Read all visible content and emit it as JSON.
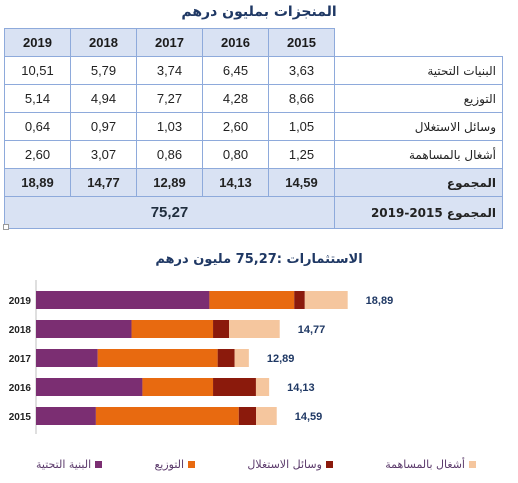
{
  "table": {
    "title": "المنجزات بمليون درهم",
    "years": [
      "2019",
      "2018",
      "2017",
      "2016",
      "2015"
    ],
    "rows": [
      {
        "label": "البنيات التحتية",
        "values": [
          "10,51",
          "5,79",
          "3,74",
          "6,45",
          "3,63"
        ]
      },
      {
        "label": "التوزيع",
        "values": [
          "5,14",
          "4,94",
          "7,27",
          "4,28",
          "8,66"
        ]
      },
      {
        "label": "وسائل الاستغلال",
        "values": [
          "0,64",
          "0,97",
          "1,03",
          "2,60",
          "1,05"
        ]
      },
      {
        "label": "أشغال بالمساهمة",
        "values": [
          "2,60",
          "3,07",
          "0,86",
          "0,80",
          "1,25"
        ]
      }
    ],
    "total": {
      "label": "المجموع",
      "values": [
        "18,89",
        "14,77",
        "12,89",
        "14,13",
        "14,59"
      ]
    },
    "grand_total": {
      "label": "المجموع 2015-2019",
      "value": "75,27"
    }
  },
  "chart_data": {
    "type": "bar",
    "orientation": "horizontal",
    "stacked": true,
    "title": "الاستثمارات :75,27 مليون درهم",
    "categories": [
      "2019",
      "2018",
      "2017",
      "2016",
      "2015"
    ],
    "series": [
      {
        "name": "البنية التحتية",
        "color": "#7b2e72",
        "values": [
          10.51,
          5.79,
          3.74,
          6.45,
          3.63
        ]
      },
      {
        "name": "التوزيع",
        "color": "#e86a10",
        "values": [
          5.14,
          4.94,
          7.27,
          4.28,
          8.66
        ]
      },
      {
        "name": "وسائل الاستغلال",
        "color": "#8b1a0c",
        "values": [
          0.64,
          0.97,
          1.03,
          2.6,
          1.05
        ]
      },
      {
        "name": "أشغال بالمساهمة",
        "color": "#f5c69e",
        "values": [
          2.6,
          3.07,
          0.86,
          0.8,
          1.25
        ]
      }
    ],
    "totals": [
      "18,89",
      "14,77",
      "12,89",
      "14,13",
      "14,59"
    ],
    "legend": "bottom"
  }
}
